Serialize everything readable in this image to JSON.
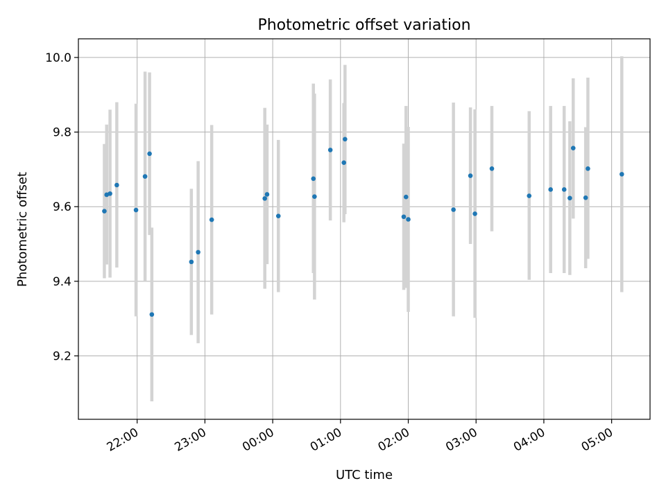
{
  "chart_data": {
    "type": "scatter",
    "title": "Photometric offset variation",
    "xlabel": "UTC time",
    "ylabel": "Photometric offset",
    "x_axis": {
      "start": "21:08",
      "end": "05:34",
      "unit": "UTC time"
    },
    "xlim": [
      "21:08",
      "05:34"
    ],
    "ylim": [
      9.03,
      10.05
    ],
    "x_ticks": [
      "22:00",
      "23:00",
      "00:00",
      "01:00",
      "02:00",
      "03:00",
      "04:00",
      "05:00"
    ],
    "y_ticks": [
      9.2,
      9.4,
      9.6,
      9.8,
      10.0
    ],
    "y_tick_labels": [
      "9.2",
      "9.4",
      "9.6",
      "9.8",
      "10.0"
    ],
    "grid": true,
    "colors": {
      "points": "#1f77b4",
      "error_bars": "#d3d3d3",
      "grid": "#b0b0b0"
    },
    "points": [
      {
        "t": "21:31",
        "y": 9.588,
        "lo": 9.408,
        "hi": 9.768
      },
      {
        "t": "21:33",
        "y": 9.632,
        "lo": 9.445,
        "hi": 9.82
      },
      {
        "t": "21:36",
        "y": 9.635,
        "lo": 9.41,
        "hi": 9.86
      },
      {
        "t": "21:42",
        "y": 9.658,
        "lo": 9.437,
        "hi": 9.88
      },
      {
        "t": "21:59",
        "y": 9.591,
        "lo": 9.306,
        "hi": 9.876
      },
      {
        "t": "22:07",
        "y": 9.681,
        "lo": 9.4,
        "hi": 9.962
      },
      {
        "t": "22:11",
        "y": 9.742,
        "lo": 9.524,
        "hi": 9.96
      },
      {
        "t": "22:13",
        "y": 9.311,
        "lo": 9.078,
        "hi": 9.544
      },
      {
        "t": "22:48",
        "y": 9.452,
        "lo": 9.256,
        "hi": 9.648
      },
      {
        "t": "22:54",
        "y": 9.478,
        "lo": 9.234,
        "hi": 9.722
      },
      {
        "t": "23:06",
        "y": 9.565,
        "lo": 9.311,
        "hi": 9.819
      },
      {
        "t": "23:53",
        "y": 9.622,
        "lo": 9.38,
        "hi": 9.865
      },
      {
        "t": "23:55",
        "y": 9.633,
        "lo": 9.446,
        "hi": 9.82
      },
      {
        "t": "00:05",
        "y": 9.575,
        "lo": 9.371,
        "hi": 9.779
      },
      {
        "t": "00:36",
        "y": 9.675,
        "lo": 9.422,
        "hi": 9.93
      },
      {
        "t": "00:37",
        "y": 9.627,
        "lo": 9.351,
        "hi": 9.903
      },
      {
        "t": "00:51",
        "y": 9.752,
        "lo": 9.563,
        "hi": 9.941
      },
      {
        "t": "01:03",
        "y": 9.718,
        "lo": 9.558,
        "hi": 9.878
      },
      {
        "t": "01:04",
        "y": 9.781,
        "lo": 9.58,
        "hi": 9.98
      },
      {
        "t": "01:56",
        "y": 9.573,
        "lo": 9.377,
        "hi": 9.769
      },
      {
        "t": "01:58",
        "y": 9.626,
        "lo": 9.382,
        "hi": 9.87
      },
      {
        "t": "02:00",
        "y": 9.566,
        "lo": 9.318,
        "hi": 9.814
      },
      {
        "t": "02:40",
        "y": 9.592,
        "lo": 9.306,
        "hi": 9.879
      },
      {
        "t": "02:55",
        "y": 9.683,
        "lo": 9.5,
        "hi": 9.866
      },
      {
        "t": "02:59",
        "y": 9.581,
        "lo": 9.302,
        "hi": 9.861
      },
      {
        "t": "03:14",
        "y": 9.702,
        "lo": 9.534,
        "hi": 9.87
      },
      {
        "t": "03:47",
        "y": 9.629,
        "lo": 9.404,
        "hi": 9.856
      },
      {
        "t": "04:06",
        "y": 9.646,
        "lo": 9.422,
        "hi": 9.87
      },
      {
        "t": "04:18",
        "y": 9.646,
        "lo": 9.422,
        "hi": 9.87
      },
      {
        "t": "04:23",
        "y": 9.623,
        "lo": 9.417,
        "hi": 9.829
      },
      {
        "t": "04:26",
        "y": 9.757,
        "lo": 9.568,
        "hi": 9.944
      },
      {
        "t": "04:37",
        "y": 9.624,
        "lo": 9.435,
        "hi": 9.813
      },
      {
        "t": "04:39",
        "y": 9.702,
        "lo": 9.46,
        "hi": 9.946
      },
      {
        "t": "05:09",
        "y": 9.687,
        "lo": 9.371,
        "hi": 10.003
      }
    ]
  }
}
